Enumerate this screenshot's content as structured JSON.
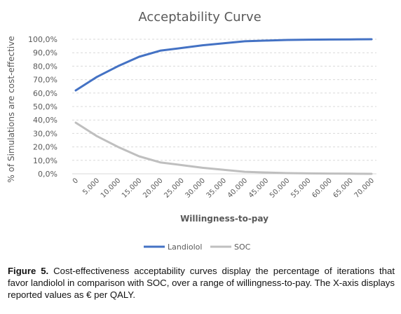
{
  "caption": {
    "label": "Figure 5.",
    "text": "Cost-effectiveness acceptability curves display the percentage of iterations that favor landiolol in comparison with SOC, over a range of willingness-to-pay. The X-axis displays reported values as € per QALY."
  },
  "chart_data": {
    "type": "line",
    "title": "Acceptability Curve",
    "xlabel": "Willingness-to-pay",
    "ylabel": "% of Simulations are cost-effective",
    "categories": [
      "0",
      "5.000",
      "10.000",
      "15.000",
      "20.000",
      "25.000",
      "30.000",
      "35.000",
      "40.000",
      "45.000",
      "50.000",
      "55.000",
      "60.000",
      "65.000",
      "70.000"
    ],
    "y_ticks": [
      "0,0%",
      "10,0%",
      "20,0%",
      "30,0%",
      "40,0%",
      "50,0%",
      "60,0%",
      "70,0%",
      "80,0%",
      "90,0%",
      "100,0%"
    ],
    "ylim": [
      0,
      100
    ],
    "grid": true,
    "legend_position": "bottom",
    "series": [
      {
        "name": "Landiolol",
        "color": "#4472c4",
        "values": [
          62,
          72,
          80,
          87,
          91.5,
          93.5,
          95.5,
          97,
          98.5,
          99,
          99.5,
          99.7,
          99.8,
          99.9,
          100
        ]
      },
      {
        "name": "SOC",
        "color": "#bfbfbf",
        "values": [
          38,
          28,
          20,
          13,
          8.5,
          6.5,
          4.5,
          3,
          1.5,
          1,
          0.5,
          0.3,
          0.2,
          0.1,
          0
        ]
      }
    ]
  }
}
